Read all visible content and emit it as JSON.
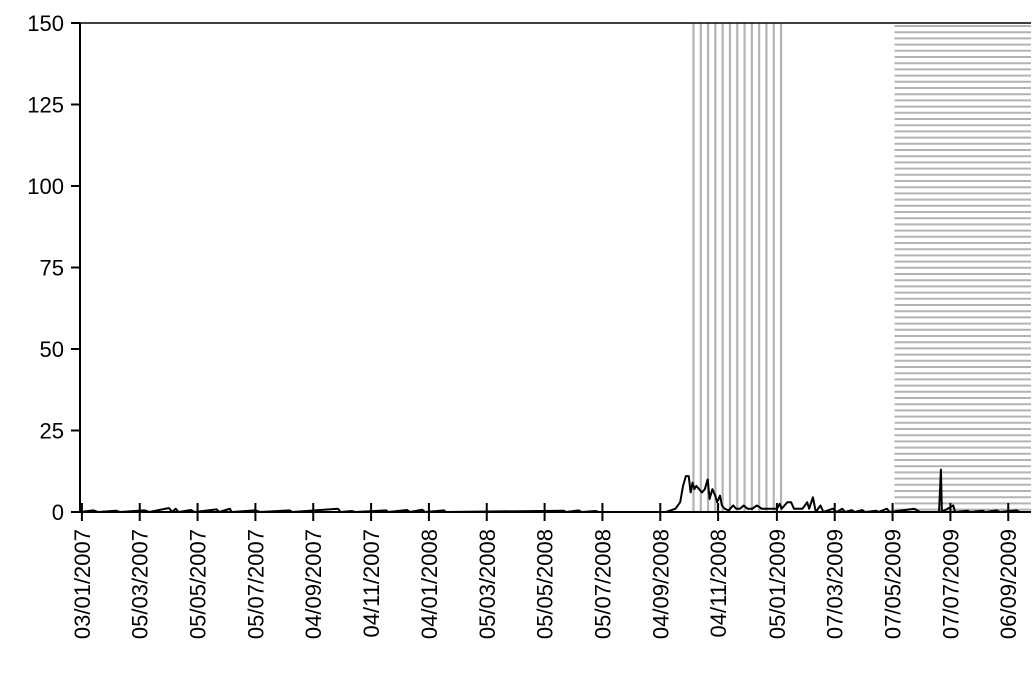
{
  "chart_data": {
    "type": "line",
    "title": "",
    "xlabel": "",
    "ylabel": "",
    "ylim": [
      0,
      150
    ],
    "yticks": [
      0,
      25,
      50,
      75,
      100,
      125,
      150
    ],
    "xlim": [
      "2007-01-01",
      "2009-09-30"
    ],
    "xtick_labels": [
      {
        "date": "2007-01-03",
        "label": "03/01/2007"
      },
      {
        "date": "2007-03-05",
        "label": "05/03/2007"
      },
      {
        "date": "2007-05-05",
        "label": "05/05/2007"
      },
      {
        "date": "2007-07-05",
        "label": "05/07/2007"
      },
      {
        "date": "2007-09-04",
        "label": "04/09/2007"
      },
      {
        "date": "2007-11-04",
        "label": "04/11/2007"
      },
      {
        "date": "2008-01-04",
        "label": "04/01/2008"
      },
      {
        "date": "2008-03-05",
        "label": "05/03/2008"
      },
      {
        "date": "2008-05-05",
        "label": "05/05/2008"
      },
      {
        "date": "2008-07-05",
        "label": "05/07/2008"
      },
      {
        "date": "2008-09-04",
        "label": "04/09/2008"
      },
      {
        "date": "2008-11-04",
        "label": "04/11/2008"
      },
      {
        "date": "2009-01-05",
        "label": "05/01/2009"
      },
      {
        "date": "2009-03-07",
        "label": "07/03/2009"
      },
      {
        "date": "2009-05-07",
        "label": "07/05/2009"
      },
      {
        "date": "2009-07-07",
        "label": "07/07/2009"
      },
      {
        "date": "2009-09-06",
        "label": "06/09/2009"
      }
    ],
    "shaded_regions": [
      {
        "start": "2008-10-09",
        "end": "2009-01-14",
        "pattern": "vertical-lines",
        "color": "#b3b3b3"
      },
      {
        "start": "2009-05-09",
        "end": "2009-09-30",
        "pattern": "horizontal-lines",
        "color": "#b3b3b3"
      }
    ],
    "series": [
      {
        "color": "#000000",
        "points": [
          [
            "2007-01-01",
            0
          ],
          [
            "2007-01-15",
            0.5
          ],
          [
            "2007-01-20",
            0
          ],
          [
            "2007-02-08",
            0.4
          ],
          [
            "2007-02-12",
            0
          ],
          [
            "2007-03-10",
            0.5
          ],
          [
            "2007-03-15",
            0
          ],
          [
            "2007-04-01",
            1
          ],
          [
            "2007-04-05",
            1.2
          ],
          [
            "2007-04-08",
            0
          ],
          [
            "2007-04-12",
            1
          ],
          [
            "2007-04-15",
            0
          ],
          [
            "2007-04-28",
            0.6
          ],
          [
            "2007-05-02",
            0
          ],
          [
            "2007-05-25",
            0.8
          ],
          [
            "2007-05-28",
            0
          ],
          [
            "2007-06-08",
            1
          ],
          [
            "2007-06-10",
            0
          ],
          [
            "2007-07-05",
            0.5
          ],
          [
            "2007-07-10",
            0
          ],
          [
            "2007-08-10",
            0.5
          ],
          [
            "2007-08-13",
            0
          ],
          [
            "2007-09-30",
            1
          ],
          [
            "2007-10-03",
            0
          ],
          [
            "2007-10-15",
            0.3
          ],
          [
            "2007-10-18",
            0
          ],
          [
            "2007-11-20",
            0.5
          ],
          [
            "2007-11-22",
            0
          ],
          [
            "2007-12-12",
            0.6
          ],
          [
            "2007-12-15",
            0
          ],
          [
            "2007-12-28",
            0.7
          ],
          [
            "2007-12-31",
            0
          ],
          [
            "2008-01-20",
            0.5
          ],
          [
            "2008-01-22",
            0
          ],
          [
            "2008-05-25",
            0.4
          ],
          [
            "2008-05-28",
            0
          ],
          [
            "2008-06-10",
            0.5
          ],
          [
            "2008-06-13",
            0
          ],
          [
            "2008-06-28",
            0.3
          ],
          [
            "2008-07-01",
            0
          ],
          [
            "2008-09-10",
            0
          ],
          [
            "2008-09-20",
            1
          ],
          [
            "2008-09-25",
            3
          ],
          [
            "2008-09-28",
            8
          ],
          [
            "2008-10-01",
            11
          ],
          [
            "2008-10-04",
            11
          ],
          [
            "2008-10-06",
            6
          ],
          [
            "2008-10-08",
            9
          ],
          [
            "2008-10-10",
            7
          ],
          [
            "2008-10-12",
            8
          ],
          [
            "2008-10-15",
            7
          ],
          [
            "2008-10-18",
            6
          ],
          [
            "2008-10-21",
            7
          ],
          [
            "2008-10-24",
            10
          ],
          [
            "2008-10-26",
            4
          ],
          [
            "2008-10-29",
            7
          ],
          [
            "2008-11-01",
            5
          ],
          [
            "2008-11-03",
            3
          ],
          [
            "2008-11-06",
            5
          ],
          [
            "2008-11-08",
            2
          ],
          [
            "2008-11-11",
            1
          ],
          [
            "2008-11-15",
            0.5
          ],
          [
            "2008-11-20",
            2
          ],
          [
            "2008-11-23",
            1
          ],
          [
            "2008-11-27",
            1
          ],
          [
            "2008-12-01",
            2
          ],
          [
            "2008-12-05",
            1
          ],
          [
            "2008-12-10",
            1
          ],
          [
            "2008-12-15",
            2
          ],
          [
            "2008-12-20",
            1
          ],
          [
            "2009-01-05",
            1
          ],
          [
            "2009-01-08",
            2.5
          ],
          [
            "2009-01-10",
            1
          ],
          [
            "2009-01-16",
            3
          ],
          [
            "2009-01-20",
            3
          ],
          [
            "2009-01-23",
            1
          ],
          [
            "2009-02-01",
            1
          ],
          [
            "2009-02-06",
            3
          ],
          [
            "2009-02-08",
            1
          ],
          [
            "2009-02-12",
            4.5
          ],
          [
            "2009-02-15",
            0
          ],
          [
            "2009-02-20",
            2
          ],
          [
            "2009-02-23",
            0
          ],
          [
            "2009-03-05",
            1
          ],
          [
            "2009-03-09",
            0
          ],
          [
            "2009-03-15",
            1
          ],
          [
            "2009-03-18",
            0
          ],
          [
            "2009-03-25",
            0.6
          ],
          [
            "2009-03-28",
            0
          ],
          [
            "2009-04-05",
            0.6
          ],
          [
            "2009-04-08",
            0
          ],
          [
            "2009-04-20",
            0.4
          ],
          [
            "2009-04-22",
            0
          ],
          [
            "2009-05-01",
            1
          ],
          [
            "2009-05-04",
            0
          ],
          [
            "2009-05-30",
            1
          ],
          [
            "2009-06-02",
            0.5
          ],
          [
            "2009-06-05",
            0
          ],
          [
            "2009-06-25",
            0
          ],
          [
            "2009-06-27",
            13
          ],
          [
            "2009-06-28",
            0
          ],
          [
            "2009-07-10",
            2
          ],
          [
            "2009-07-12",
            0
          ],
          [
            "2009-07-25",
            0.4
          ],
          [
            "2009-07-28",
            0
          ],
          [
            "2009-08-10",
            0.4
          ],
          [
            "2009-08-13",
            0
          ],
          [
            "2009-08-25",
            0.5
          ],
          [
            "2009-08-28",
            0
          ],
          [
            "2009-09-15",
            0.5
          ],
          [
            "2009-09-18",
            0
          ],
          [
            "2009-09-30",
            0
          ]
        ]
      }
    ]
  }
}
